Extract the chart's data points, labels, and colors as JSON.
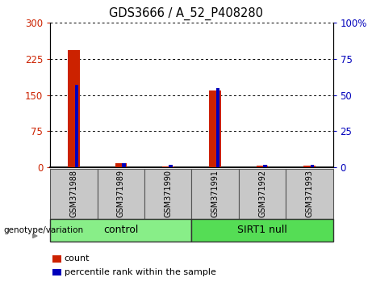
{
  "title": "GDS3666 / A_52_P408280",
  "samples": [
    "GSM371988",
    "GSM371989",
    "GSM371990",
    "GSM371991",
    "GSM371992",
    "GSM371993"
  ],
  "count_values": [
    243,
    8,
    2,
    160,
    3,
    3
  ],
  "percentile_values": [
    57,
    3,
    2,
    55,
    2,
    2
  ],
  "groups": [
    {
      "label": "control",
      "indices": [
        0,
        1,
        2
      ],
      "color": "#88EE88"
    },
    {
      "label": "SIRT1 null",
      "indices": [
        3,
        4,
        5
      ],
      "color": "#55DD55"
    }
  ],
  "sample_row_color": "#C8C8C8",
  "bar_color_count": "#CC2200",
  "bar_color_percentile": "#0000BB",
  "left_ylim": [
    0,
    300
  ],
  "right_ylim": [
    0,
    100
  ],
  "left_yticks": [
    0,
    75,
    150,
    225,
    300
  ],
  "right_yticks": [
    0,
    25,
    50,
    75,
    100
  ],
  "right_ytick_labels": [
    "0",
    "25",
    "50",
    "75",
    "100%"
  ],
  "genotype_label": "genotype/variation",
  "legend_count_label": "count",
  "legend_percentile_label": "percentile rank within the sample",
  "red_bar_width": 0.25,
  "blue_bar_width": 0.08
}
